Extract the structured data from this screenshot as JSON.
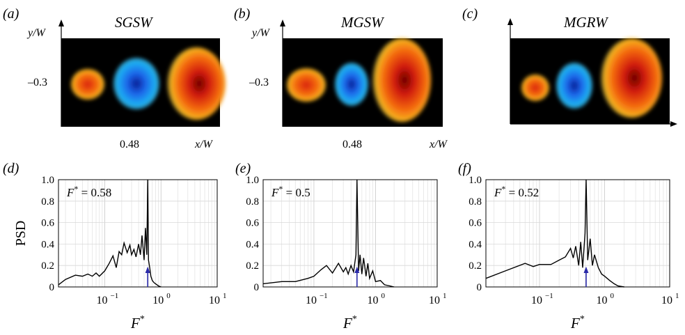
{
  "top_panels": [
    {
      "letter": "(a)",
      "title": "SGSW",
      "ylabel": "y/W",
      "xlabel": "x/W",
      "ytick": "–0.3",
      "xtick": "0.48"
    },
    {
      "letter": "(b)",
      "title": "MGSW",
      "ylabel": "y/W",
      "xlabel": "x/W",
      "ytick": "–0.3",
      "xtick": "0.48"
    },
    {
      "letter": "(c)",
      "title": "MGRW",
      "ylabel": "",
      "xlabel": "",
      "ytick": "",
      "xtick": ""
    }
  ],
  "colors": {
    "background": "#000000",
    "positive": "#e84a10",
    "negative": "#1a8cf0",
    "line": "#000000",
    "marker": "#2a2aa8"
  },
  "chart_data": [
    {
      "type": "line",
      "letter": "(d)",
      "annotation": "F* = 0.58",
      "peak": 0.58,
      "ylabel": "PSD",
      "xlabel": "F*",
      "xscale": "log",
      "xlim": [
        0.015,
        10
      ],
      "ylim": [
        0,
        1
      ],
      "yticks": [
        "0",
        "0.2",
        "0.4",
        "0.6",
        "0.8",
        "1.0"
      ],
      "xticks": [
        "10",
        "10",
        "10"
      ],
      "xtick_exp": [
        "−1",
        "0",
        "1"
      ],
      "x": [
        0.015,
        0.02,
        0.03,
        0.04,
        0.05,
        0.06,
        0.07,
        0.08,
        0.1,
        0.12,
        0.14,
        0.16,
        0.18,
        0.2,
        0.22,
        0.25,
        0.28,
        0.3,
        0.33,
        0.36,
        0.4,
        0.43,
        0.46,
        0.5,
        0.53,
        0.56,
        0.58,
        0.6,
        0.63,
        0.66,
        0.7,
        0.75,
        0.8,
        0.9,
        1.0
      ],
      "y": [
        0.02,
        0.07,
        0.11,
        0.1,
        0.12,
        0.1,
        0.13,
        0.1,
        0.15,
        0.22,
        0.29,
        0.18,
        0.33,
        0.3,
        0.41,
        0.32,
        0.39,
        0.3,
        0.35,
        0.28,
        0.4,
        0.3,
        0.48,
        0.25,
        0.55,
        0.3,
        1.0,
        0.25,
        0.18,
        0.1,
        0.06,
        0.04,
        0.03,
        0.01,
        0.0
      ]
    },
    {
      "type": "line",
      "letter": "(e)",
      "annotation": "F* = 0.5",
      "peak": 0.5,
      "ylabel": "",
      "xlabel": "F*",
      "xscale": "log",
      "xlim": [
        0.015,
        10
      ],
      "ylim": [
        0,
        1
      ],
      "yticks": [
        "0",
        "0.2",
        "0.4",
        "0.6",
        "0.8",
        "1.0"
      ],
      "xticks": [
        "10",
        "10",
        "10"
      ],
      "xtick_exp": [
        "−1",
        "0",
        "1"
      ],
      "x": [
        0.015,
        0.03,
        0.05,
        0.08,
        0.1,
        0.13,
        0.16,
        0.2,
        0.25,
        0.3,
        0.33,
        0.36,
        0.4,
        0.44,
        0.48,
        0.5,
        0.53,
        0.56,
        0.6,
        0.64,
        0.7,
        0.75,
        0.8,
        0.9,
        1.0,
        1.2,
        1.4,
        1.7,
        2.0
      ],
      "y": [
        0.03,
        0.05,
        0.05,
        0.08,
        0.1,
        0.16,
        0.2,
        0.13,
        0.22,
        0.14,
        0.18,
        0.12,
        0.2,
        0.14,
        0.3,
        1.0,
        0.15,
        0.3,
        0.12,
        0.27,
        0.1,
        0.22,
        0.08,
        0.15,
        0.05,
        0.06,
        0.02,
        0.01,
        0.0
      ]
    },
    {
      "type": "line",
      "letter": "(f)",
      "annotation": "F* = 0.52",
      "peak": 0.52,
      "ylabel": "",
      "xlabel": "F*",
      "xscale": "log",
      "xlim": [
        0.015,
        10
      ],
      "ylim": [
        0,
        1
      ],
      "yticks": [
        "0",
        "0.2",
        "0.4",
        "0.6",
        "0.8",
        "1.0"
      ],
      "xticks": [
        "10",
        "10",
        "10"
      ],
      "xtick_exp": [
        "−1",
        "0",
        "1"
      ],
      "x": [
        0.015,
        0.03,
        0.06,
        0.08,
        0.1,
        0.15,
        0.2,
        0.25,
        0.3,
        0.33,
        0.36,
        0.4,
        0.43,
        0.46,
        0.5,
        0.52,
        0.55,
        0.6,
        0.65,
        0.7,
        0.8,
        0.9,
        1.0,
        1.2,
        1.4,
        1.6,
        2.0
      ],
      "y": [
        0.08,
        0.15,
        0.22,
        0.19,
        0.21,
        0.21,
        0.25,
        0.28,
        0.36,
        0.27,
        0.38,
        0.2,
        0.42,
        0.18,
        0.5,
        1.0,
        0.25,
        0.45,
        0.2,
        0.3,
        0.18,
        0.12,
        0.1,
        0.06,
        0.03,
        0.01,
        0.0
      ]
    }
  ]
}
